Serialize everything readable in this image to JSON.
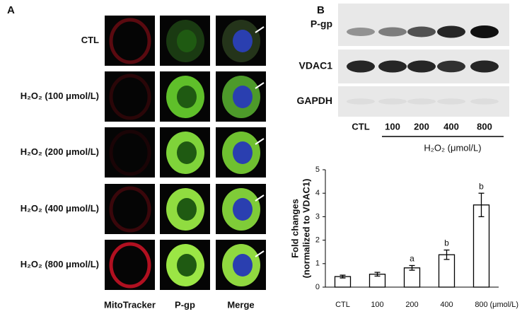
{
  "panel_a": {
    "label": "A",
    "rows": [
      "CTL",
      "H₂O₂ (100 μmol/L)",
      "H₂O₂ (200 μmol/L)",
      "H₂O₂ (400 μmol/L)",
      "H₂O₂ (800 μmol/L)"
    ],
    "columns": [
      "MitoTracker",
      "P-gp",
      "Merge"
    ]
  },
  "panel_b": {
    "label": "B",
    "bands": [
      "P-gp",
      "VDAC1",
      "GAPDH"
    ],
    "lanes": [
      "CTL",
      "100",
      "200",
      "400",
      "800"
    ],
    "treatment": "H₂O₂ (μmol/L)"
  },
  "chart_data": {
    "type": "bar",
    "y_label": [
      "Fold changes",
      "(normalized to VDAC1)"
    ],
    "categories": [
      "CTL",
      "100",
      "200",
      "400",
      "800"
    ],
    "x_unit": "(μmol/L)",
    "values": [
      0.45,
      0.55,
      0.82,
      1.38,
      3.5
    ],
    "errors": [
      0.06,
      0.08,
      0.1,
      0.2,
      0.5
    ],
    "annotations": [
      null,
      null,
      "a",
      "b",
      "b"
    ],
    "ylim": [
      0,
      5
    ],
    "yticks": [
      0,
      1,
      2,
      3,
      4,
      5
    ],
    "color": "#ffffff"
  }
}
